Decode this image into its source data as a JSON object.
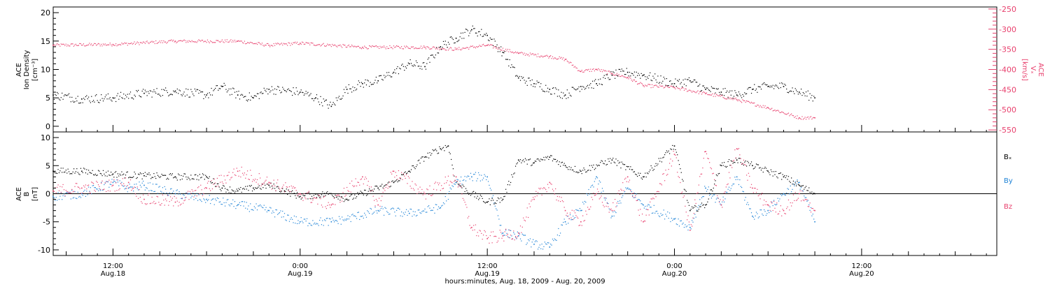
{
  "colors": {
    "black": "#000000",
    "pink": "#e8416e",
    "blue": "#1f83d6"
  },
  "x_ticks": [
    {
      "time": "12:00",
      "date": "Aug.18"
    },
    {
      "time": "0:00",
      "date": "Aug.19"
    },
    {
      "time": "12:00",
      "date": "Aug.19"
    },
    {
      "time": "0:00",
      "date": "Aug.20"
    },
    {
      "time": "12:00",
      "date": "Aug.20"
    }
  ],
  "xlabel": "hours:minutes, Aug. 18, 2009 - Aug. 20, 2009",
  "chart_data": [
    {
      "type": "scatter",
      "grid": false,
      "xlim": [
        "2009-08-18 08:10",
        "2009-08-20 20:40"
      ],
      "ylabel": {
        "instrument": "ACE",
        "quantity": "Ion Density",
        "unit": "[cm⁻³]"
      },
      "ylim": [
        -1,
        21
      ],
      "yticks": [
        0,
        5,
        10,
        15,
        20
      ],
      "y2label": {
        "instrument": "ACE",
        "quantity": "Vₓ",
        "unit": "[km/s]"
      },
      "y2lim": [
        -555,
        -245
      ],
      "y2ticks": [
        -250,
        -300,
        -350,
        -400,
        -450,
        -500,
        -550
      ],
      "series": [
        {
          "axis": "left",
          "color": "#000000",
          "x": [
            "2009-08-18 08:10",
            "2009-08-18 10:00",
            "2009-08-18 12:00",
            "2009-08-18 14:00",
            "2009-08-18 16:00",
            "2009-08-18 18:00",
            "2009-08-18 19:00",
            "2009-08-18 20:00",
            "2009-08-18 21:00",
            "2009-08-18 22:00",
            "2009-08-19 00:00",
            "2009-08-19 01:00",
            "2009-08-19 02:00",
            "2009-08-19 03:00",
            "2009-08-19 04:00",
            "2009-08-19 05:00",
            "2009-08-19 06:00",
            "2009-08-19 07:00",
            "2009-08-19 08:00",
            "2009-08-19 09:00",
            "2009-08-19 10:00",
            "2009-08-19 11:00",
            "2009-08-19 12:00",
            "2009-08-19 13:00",
            "2009-08-19 14:00",
            "2009-08-19 15:00",
            "2009-08-19 16:00",
            "2009-08-19 17:00",
            "2009-08-19 18:00",
            "2009-08-19 19:00",
            "2009-08-19 20:00",
            "2009-08-19 21:00",
            "2009-08-19 22:00",
            "2009-08-20 00:00",
            "2009-08-20 01:00",
            "2009-08-20 02:00",
            "2009-08-20 03:00",
            "2009-08-20 04:00",
            "2009-08-20 05:00",
            "2009-08-20 06:00",
            "2009-08-20 07:00",
            "2009-08-20 08:00",
            "2009-08-20 09:00"
          ],
          "y": [
            5.5,
            4.8,
            5.0,
            5.8,
            6.2,
            5.5,
            7.0,
            5.5,
            5.0,
            6.5,
            6.0,
            5.0,
            3.5,
            6.5,
            7.5,
            8.0,
            9.5,
            11.0,
            10.5,
            14.0,
            15.5,
            17.0,
            16.0,
            13.0,
            8.5,
            7.5,
            6.5,
            5.5,
            7.0,
            7.5,
            9.0,
            9.5,
            9.0,
            7.5,
            8.0,
            6.5,
            6.0,
            5.5,
            6.5,
            7.0,
            7.0,
            6.0,
            5.0
          ]
        },
        {
          "axis": "right",
          "color": "#e8416e",
          "x": [
            "2009-08-18 08:10",
            "2009-08-18 12:00",
            "2009-08-18 16:00",
            "2009-08-18 20:00",
            "2009-08-18 22:00",
            "2009-08-19 00:00",
            "2009-08-19 04:00",
            "2009-08-19 08:00",
            "2009-08-19 10:00",
            "2009-08-19 12:00",
            "2009-08-19 14:00",
            "2009-08-19 16:00",
            "2009-08-19 17:00",
            "2009-08-19 18:00",
            "2009-08-19 19:00",
            "2009-08-19 20:00",
            "2009-08-19 21:00",
            "2009-08-19 22:00",
            "2009-08-20 00:00",
            "2009-08-20 02:00",
            "2009-08-20 04:00",
            "2009-08-20 06:00",
            "2009-08-20 08:00",
            "2009-08-20 09:00"
          ],
          "y": [
            -340,
            -338,
            -330,
            -330,
            -340,
            -335,
            -345,
            -345,
            -350,
            -340,
            -360,
            -368,
            -375,
            -405,
            -400,
            -410,
            -420,
            -440,
            -445,
            -460,
            -475,
            -495,
            -520,
            -520
          ]
        }
      ]
    },
    {
      "type": "scatter",
      "grid": false,
      "xlim": [
        "2009-08-18 08:10",
        "2009-08-20 20:40"
      ],
      "ylabel": {
        "instrument": "ACE",
        "quantity": "B",
        "unit": "[nT]"
      },
      "ylim": [
        -11,
        11
      ],
      "yticks": [
        10,
        5,
        0,
        -5,
        -10
      ],
      "zero_line": true,
      "legend_position": "right",
      "series": [
        {
          "name": "Bₓ",
          "color": "#000000",
          "x": [
            "2009-08-18 08:10",
            "2009-08-18 10:00",
            "2009-08-18 12:00",
            "2009-08-18 14:00",
            "2009-08-18 16:00",
            "2009-08-18 18:00",
            "2009-08-18 19:00",
            "2009-08-18 20:00",
            "2009-08-18 21:00",
            "2009-08-18 22:00",
            "2009-08-18 23:00",
            "2009-08-19 00:00",
            "2009-08-19 02:00",
            "2009-08-19 03:00",
            "2009-08-19 05:00",
            "2009-08-19 06:00",
            "2009-08-19 07:00",
            "2009-08-19 08:00",
            "2009-08-19 09:00",
            "2009-08-19 09:30",
            "2009-08-19 10:00",
            "2009-08-19 11:00",
            "2009-08-19 12:00",
            "2009-08-19 13:00",
            "2009-08-19 14:00",
            "2009-08-19 15:00",
            "2009-08-19 16:00",
            "2009-08-19 17:00",
            "2009-08-19 18:00",
            "2009-08-19 20:00",
            "2009-08-19 22:00",
            "2009-08-20 00:00",
            "2009-08-20 01:00",
            "2009-08-20 02:00",
            "2009-08-20 03:00",
            "2009-08-20 04:00",
            "2009-08-20 05:00",
            "2009-08-20 06:00",
            "2009-08-20 07:00",
            "2009-08-20 08:00",
            "2009-08-20 09:00"
          ],
          "y": [
            4,
            4,
            3.5,
            3.2,
            3.0,
            3.0,
            1.0,
            0.5,
            1.0,
            1.5,
            0.5,
            -0.5,
            0,
            -1,
            1.0,
            2.0,
            4.0,
            6.5,
            8.0,
            8.5,
            2.0,
            0,
            -1.5,
            -1.0,
            6.0,
            5.5,
            6.5,
            5.0,
            4.0,
            6.0,
            3.0,
            8.5,
            -3.0,
            -2.0,
            5.0,
            6.0,
            5.0,
            4.0,
            3.0,
            1.5,
            0
          ]
        },
        {
          "name": "By",
          "color": "#1f83d6",
          "x": [
            "2009-08-18 08:10",
            "2009-08-18 10:00",
            "2009-08-18 12:00",
            "2009-08-18 13:00",
            "2009-08-18 14:00",
            "2009-08-18 16:00",
            "2009-08-18 18:00",
            "2009-08-18 20:00",
            "2009-08-18 22:00",
            "2009-08-19 00:00",
            "2009-08-19 02:00",
            "2009-08-19 03:00",
            "2009-08-19 05:00",
            "2009-08-19 07:00",
            "2009-08-19 09:00",
            "2009-08-19 10:00",
            "2009-08-19 11:00",
            "2009-08-19 12:00",
            "2009-08-19 13:00",
            "2009-08-19 14:00",
            "2009-08-19 15:00",
            "2009-08-19 16:00",
            "2009-08-19 17:00",
            "2009-08-19 18:00",
            "2009-08-19 19:00",
            "2009-08-19 20:00",
            "2009-08-19 21:00",
            "2009-08-19 22:00",
            "2009-08-20 00:00",
            "2009-08-20 01:00",
            "2009-08-20 02:00",
            "2009-08-20 03:00",
            "2009-08-20 04:00",
            "2009-08-20 05:00",
            "2009-08-20 06:00",
            "2009-08-20 07:00",
            "2009-08-20 08:00",
            "2009-08-20 09:00"
          ],
          "y": [
            -0.5,
            0,
            2.0,
            1.0,
            1.5,
            0,
            -1.0,
            -2.0,
            -3.0,
            -5.0,
            -5.0,
            -4.5,
            -3.0,
            -3.5,
            -2.5,
            2.0,
            3.0,
            3.0,
            -7.0,
            -7.5,
            -9.0,
            -9.5,
            -5.0,
            -3.0,
            3.0,
            -4.0,
            1.0,
            -2.0,
            -4.5,
            -6.0,
            1.0,
            -2.0,
            3.0,
            -4.0,
            -3.0,
            0,
            2.0,
            -5.0
          ]
        },
        {
          "name": "Bz",
          "color": "#e8416e",
          "x": [
            "2009-08-18 08:10",
            "2009-08-18 10:00",
            "2009-08-18 12:00",
            "2009-08-18 13:00",
            "2009-08-18 14:00",
            "2009-08-18 16:00",
            "2009-08-18 18:00",
            "2009-08-18 20:00",
            "2009-08-18 22:00",
            "2009-08-19 00:00",
            "2009-08-19 02:00",
            "2009-08-19 04:00",
            "2009-08-19 05:00",
            "2009-08-19 06:00",
            "2009-08-19 08:00",
            "2009-08-19 10:00",
            "2009-08-19 11:00",
            "2009-08-19 12:00",
            "2009-08-19 13:00",
            "2009-08-19 14:00",
            "2009-08-19 15:00",
            "2009-08-19 16:00",
            "2009-08-19 17:00",
            "2009-08-19 18:00",
            "2009-08-19 19:00",
            "2009-08-19 20:00",
            "2009-08-19 21:00",
            "2009-08-19 22:00",
            "2009-08-20 00:00",
            "2009-08-20 01:00",
            "2009-08-20 02:00",
            "2009-08-20 03:00",
            "2009-08-20 04:00",
            "2009-08-20 05:00",
            "2009-08-20 06:00",
            "2009-08-20 07:00",
            "2009-08-20 08:00",
            "2009-08-20 09:00"
          ],
          "y": [
            0.5,
            1.0,
            1.5,
            2.0,
            -1.0,
            -1.5,
            1.0,
            4.0,
            2.0,
            0,
            -2.0,
            3.0,
            -2.0,
            4.0,
            0,
            3.0,
            -6.0,
            -8.0,
            -7.5,
            -7.0,
            -1.0,
            2.0,
            -3.0,
            -5.0,
            0,
            -3.0,
            3.0,
            -5.0,
            7.0,
            -6.5,
            7.5,
            -2.0,
            8.0,
            1.0,
            -2.0,
            -3.0,
            0,
            -3.0
          ]
        }
      ]
    }
  ]
}
